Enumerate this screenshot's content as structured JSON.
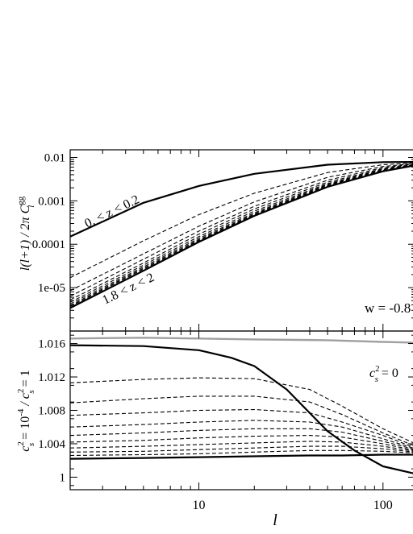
{
  "chart_data": [
    {
      "type": "line",
      "panel": "top",
      "xscale": "log",
      "yscale": "log",
      "xlim": [
        2,
        150
      ],
      "ylim": [
        1e-06,
        0.015
      ],
      "ylabel": "l(l+1) / 2π C_l^gg",
      "ylabel_parts": {
        "main": "l(l+1) / 2π C",
        "sup": "gg",
        "sub": "l"
      },
      "yticks": [
        {
          "v": 0.01,
          "label": "0.01"
        },
        {
          "v": 0.001,
          "label": "0.001"
        },
        {
          "v": 0.0001,
          "label": "0.0001"
        },
        {
          "v": 1e-05,
          "label": "1e-05"
        }
      ],
      "annotations": {
        "first_bin": "0. < z < 0.2",
        "last_bin": "1.8 < z < 2",
        "w_label": "w = -0.8"
      },
      "series": [
        {
          "style": "solid",
          "x": [
            2,
            5,
            10,
            20,
            50,
            100,
            150
          ],
          "y": [
            0.00015,
            0.0009,
            0.0022,
            0.0042,
            0.0068,
            0.0078,
            0.0079
          ]
        },
        {
          "style": "dashed",
          "x": [
            2,
            5,
            10,
            20,
            50,
            100,
            150
          ],
          "y": [
            1.7e-05,
            0.00012,
            0.00048,
            0.0015,
            0.0045,
            0.0068,
            0.0075
          ]
        },
        {
          "style": "dashed",
          "x": [
            2,
            5,
            10,
            20,
            50,
            100,
            150
          ],
          "y": [
            8.5e-06,
            6e-05,
            0.00026,
            0.00095,
            0.0035,
            0.0062,
            0.0073
          ]
        },
        {
          "style": "dashed",
          "x": [
            2,
            5,
            10,
            20,
            50,
            100,
            150
          ],
          "y": [
            6.3e-06,
            4.5e-05,
            0.0002,
            0.00075,
            0.003,
            0.0058,
            0.0071
          ]
        },
        {
          "style": "dashed",
          "x": [
            2,
            5,
            10,
            20,
            50,
            100,
            150
          ],
          "y": [
            5.2e-06,
            3.7e-05,
            0.00017,
            0.00065,
            0.0027,
            0.0055,
            0.007
          ]
        },
        {
          "style": "dashed",
          "x": [
            2,
            5,
            10,
            20,
            50,
            100,
            150
          ],
          "y": [
            4.6e-06,
            3.3e-05,
            0.00015,
            0.00058,
            0.0025,
            0.0053,
            0.0069
          ]
        },
        {
          "style": "dashed",
          "x": [
            2,
            5,
            10,
            20,
            50,
            100,
            150
          ],
          "y": [
            4.2e-06,
            3e-05,
            0.000137,
            0.00053,
            0.0024,
            0.0051,
            0.0068
          ]
        },
        {
          "style": "dashed",
          "x": [
            2,
            5,
            10,
            20,
            50,
            100,
            150
          ],
          "y": [
            3.9e-06,
            2.8e-05,
            0.000128,
            0.0005,
            0.0023,
            0.005,
            0.0067
          ]
        },
        {
          "style": "dashed",
          "x": [
            2,
            5,
            10,
            20,
            50,
            100,
            150
          ],
          "y": [
            3.7e-06,
            2.65e-05,
            0.000121,
            0.00048,
            0.0022,
            0.0049,
            0.0067
          ]
        },
        {
          "style": "solid",
          "x": [
            2,
            5,
            10,
            20,
            50,
            100,
            150
          ],
          "y": [
            3.4e-06,
            2.45e-05,
            0.000113,
            0.00045,
            0.0021,
            0.0048,
            0.0066
          ]
        }
      ]
    },
    {
      "type": "line",
      "panel": "bottom",
      "xscale": "log",
      "yscale": "linear",
      "xlim": [
        2,
        150
      ],
      "ylim": [
        0.9985,
        1.0175
      ],
      "xlabel": "l",
      "ylabel": "c_s^2 = 10^-4 / c_s^2 = 1",
      "ylabel_parts": {
        "a": "c",
        "a_sup": "2",
        "a_sub": "s",
        "b": " = 10",
        "b_sup": "-4",
        "c": " / c",
        "c_sup": "2",
        "c_sub": "s",
        "d": " = 1"
      },
      "xticks": [
        {
          "v": 10,
          "label": "10"
        },
        {
          "v": 100,
          "label": "100"
        }
      ],
      "yticks": [
        {
          "v": 1.0,
          "label": "1"
        },
        {
          "v": 1.004,
          "label": "1.004"
        },
        {
          "v": 1.008,
          "label": "1.008"
        },
        {
          "v": 1.012,
          "label": "1.012"
        },
        {
          "v": 1.016,
          "label": "1.016"
        }
      ],
      "annotation": {
        "main": "c",
        "sup": "2",
        "sub": "s",
        "rest": " = 0"
      },
      "colors": {
        "gray_line": "#a0a0a0"
      },
      "series": [
        {
          "style": "gray",
          "x": [
            2,
            5,
            10,
            20,
            50,
            100,
            150
          ],
          "y": [
            1.0166,
            1.0167,
            1.0166,
            1.0165,
            1.0164,
            1.0162,
            1.0161
          ]
        },
        {
          "style": "solid",
          "x": [
            2,
            5,
            10,
            15,
            20,
            30,
            50,
            70,
            100,
            150
          ],
          "y": [
            1.0158,
            1.0157,
            1.0152,
            1.0143,
            1.0133,
            1.0105,
            1.0055,
            1.0032,
            1.0013,
            1.0004
          ]
        },
        {
          "style": "dashed",
          "x": [
            2,
            5,
            10,
            20,
            40,
            60,
            100,
            150
          ],
          "y": [
            1.0113,
            1.0117,
            1.0119,
            1.0118,
            1.0105,
            1.0085,
            1.0058,
            1.004
          ]
        },
        {
          "style": "dashed",
          "x": [
            2,
            5,
            10,
            20,
            40,
            60,
            100,
            150
          ],
          "y": [
            1.0089,
            1.0094,
            1.0097,
            1.0097,
            1.009,
            1.0075,
            1.0053,
            1.0037
          ]
        },
        {
          "style": "dashed",
          "x": [
            2,
            5,
            10,
            20,
            40,
            60,
            100,
            150
          ],
          "y": [
            1.0074,
            1.0077,
            1.008,
            1.0081,
            1.0077,
            1.0066,
            1.005,
            1.0035
          ]
        },
        {
          "style": "dashed",
          "x": [
            2,
            5,
            10,
            20,
            40,
            60,
            100,
            150
          ],
          "y": [
            1.006,
            1.0063,
            1.0066,
            1.0068,
            1.0066,
            1.006,
            1.0046,
            1.0034
          ]
        },
        {
          "style": "dashed",
          "x": [
            2,
            5,
            10,
            20,
            40,
            60,
            100,
            150
          ],
          "y": [
            1.005,
            1.0053,
            1.0056,
            1.0058,
            1.0058,
            1.0054,
            1.0043,
            1.0033
          ]
        },
        {
          "style": "dashed",
          "x": [
            2,
            5,
            10,
            20,
            40,
            60,
            100,
            150
          ],
          "y": [
            1.0042,
            1.0044,
            1.0047,
            1.0049,
            1.005,
            1.0048,
            1.004,
            1.0032
          ]
        },
        {
          "style": "dashed",
          "x": [
            2,
            5,
            10,
            20,
            40,
            60,
            100,
            150
          ],
          "y": [
            1.0035,
            1.0037,
            1.0039,
            1.0041,
            1.0043,
            1.0042,
            1.0037,
            1.0031
          ]
        },
        {
          "style": "dashed",
          "x": [
            2,
            5,
            10,
            20,
            40,
            60,
            100,
            150
          ],
          "y": [
            1.003,
            1.0031,
            1.0033,
            1.0035,
            1.0037,
            1.0037,
            1.0034,
            1.003
          ]
        },
        {
          "style": "dashed",
          "x": [
            2,
            5,
            10,
            20,
            40,
            60,
            100,
            150
          ],
          "y": [
            1.0026,
            1.0027,
            1.0028,
            1.003,
            1.0032,
            1.0032,
            1.0031,
            1.0029
          ]
        },
        {
          "style": "solid",
          "x": [
            2,
            5,
            10,
            20,
            40,
            60,
            100,
            150
          ],
          "y": [
            1.0022,
            1.0023,
            1.0024,
            1.0025,
            1.0026,
            1.0026,
            1.0027,
            1.0027
          ]
        }
      ]
    }
  ]
}
